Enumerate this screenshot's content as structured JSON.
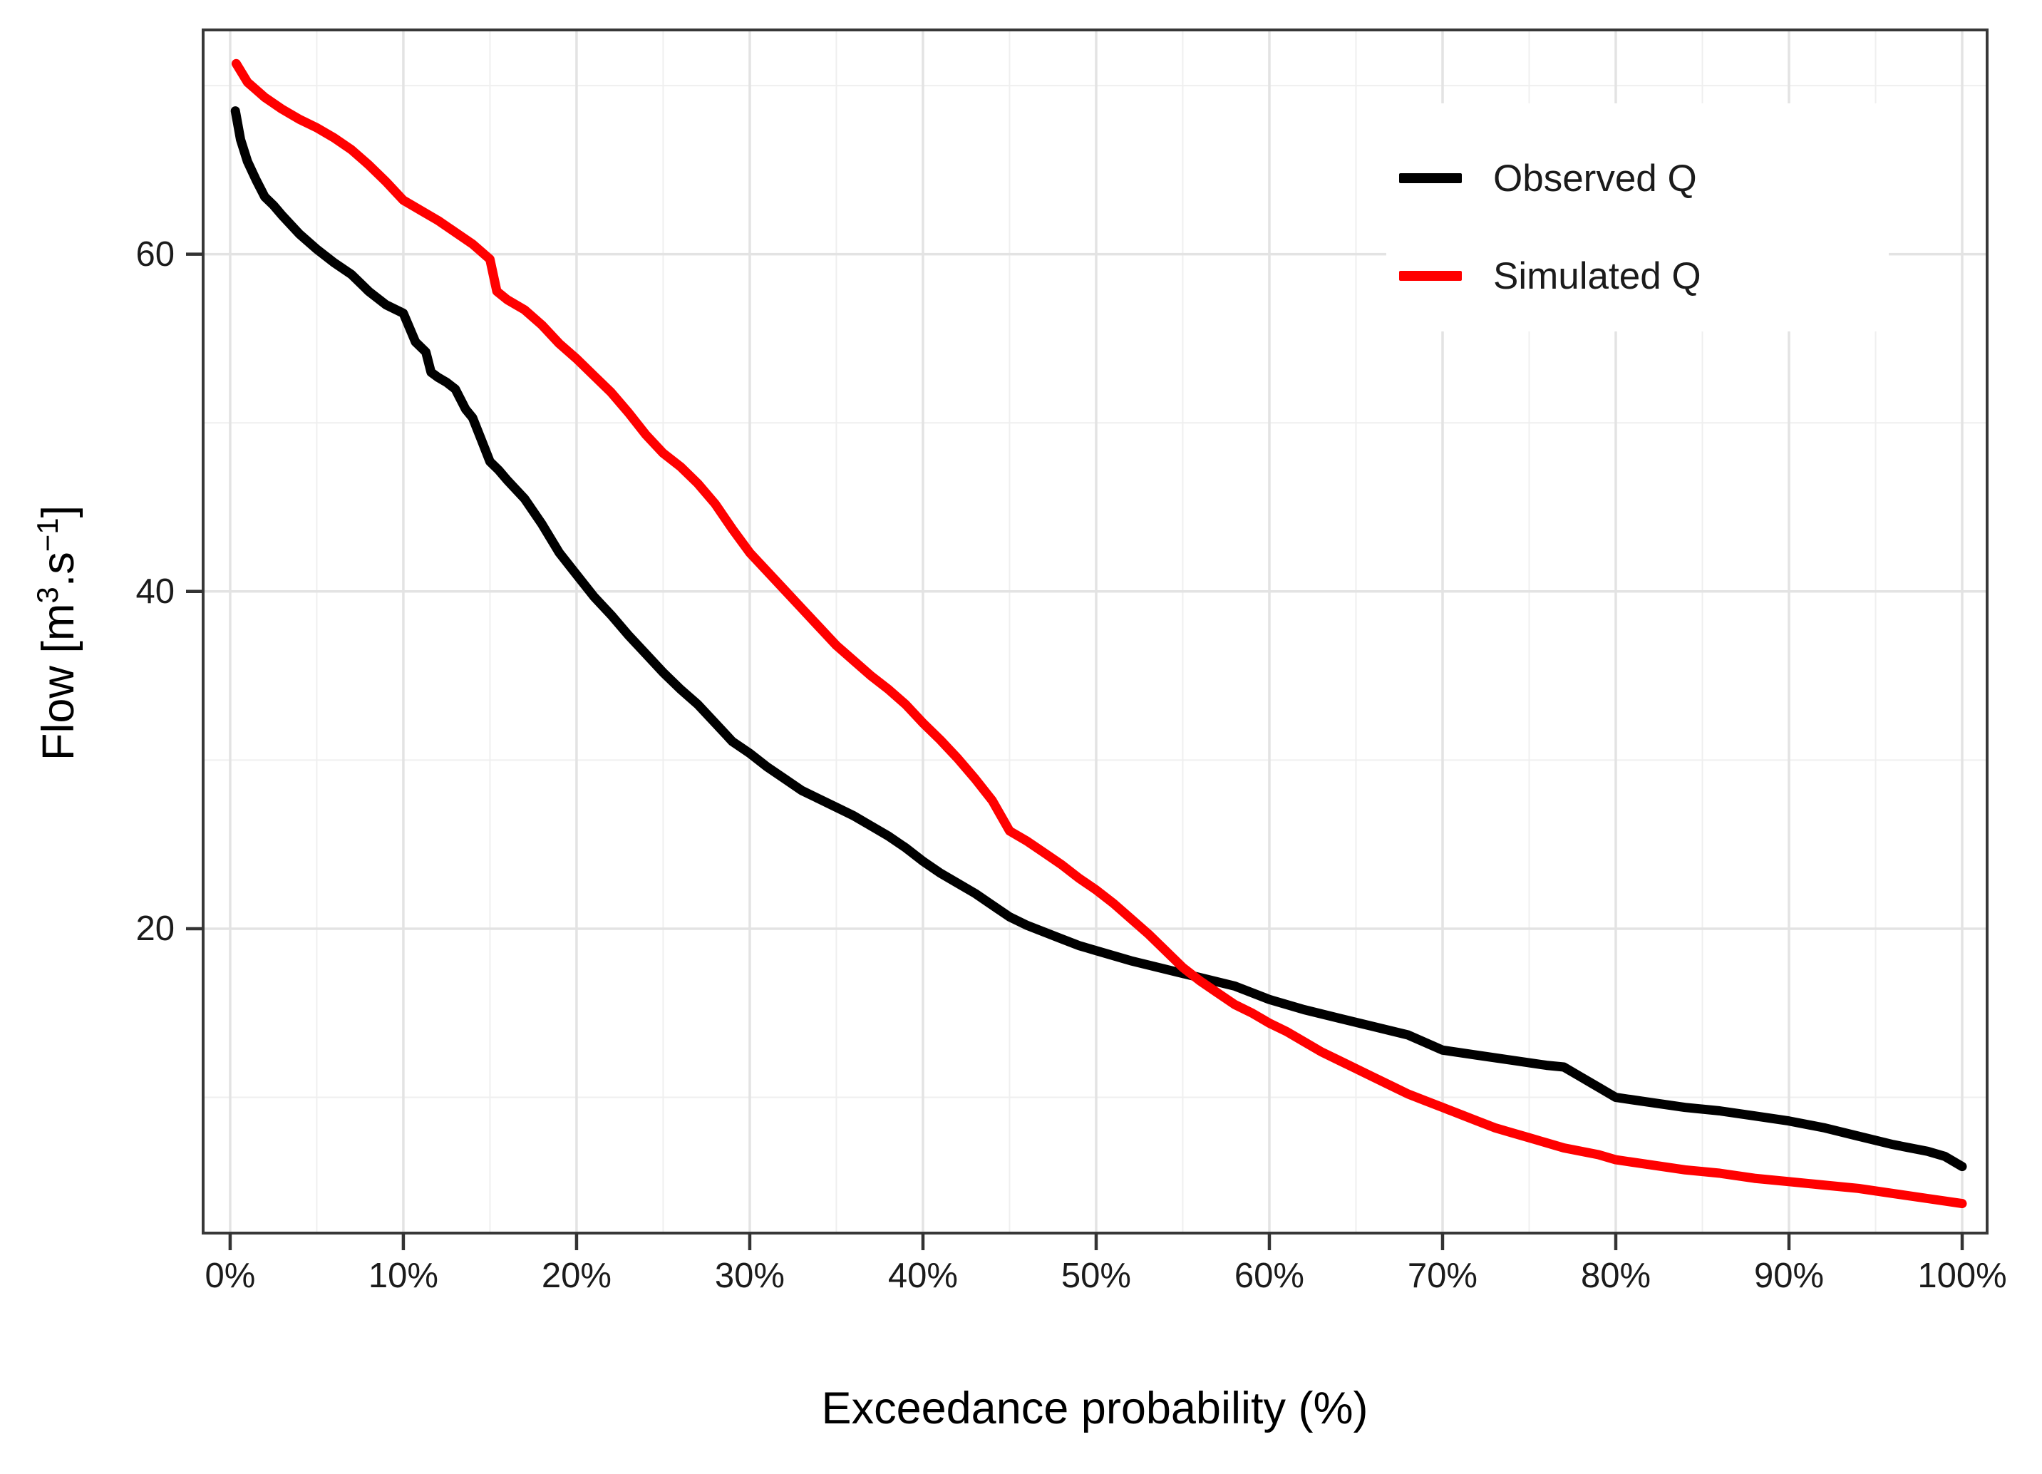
{
  "chart_data": {
    "type": "line",
    "title": "",
    "xlabel": "Exceedance probability (%)",
    "ylabel": "Flow [m3.s-1]",
    "ylabel_parts": {
      "pre": "Flow [m",
      "sup1": "3",
      "mid": ".s",
      "sup2": "−1",
      "post": "]"
    },
    "grid": "on",
    "legend_position": "top-right-inside",
    "axes": {
      "xlim": [
        -1.56,
        101.44
      ],
      "ylim": [
        1.95,
        73.3
      ],
      "x_ticks": {
        "labels": [
          "0%",
          "10%",
          "20%",
          "30%",
          "40%",
          "50%",
          "60%",
          "70%",
          "80%",
          "90%",
          "100%"
        ],
        "values": [
          0,
          10,
          20,
          30,
          40,
          50,
          60,
          70,
          80,
          90,
          100
        ]
      },
      "x_minor": [
        5,
        15,
        25,
        35,
        45,
        55,
        65,
        75,
        85,
        95
      ],
      "y_ticks": {
        "labels": [
          "20",
          "40",
          "60"
        ],
        "values": [
          20,
          40,
          60
        ]
      },
      "y_minor": [
        10,
        30,
        50,
        70
      ]
    },
    "colors": {
      "observed": "#000000",
      "simulated": "#FF0000",
      "grid_major": "#e3e3e3",
      "grid_minor": "#efefef",
      "panel_border": "#383838",
      "tick": "#333333",
      "text": "#1b1b1b"
    },
    "legend": {
      "entries": [
        {
          "label": "Observed Q",
          "color": "#000000"
        },
        {
          "label": "Simulated Q",
          "color": "#FF0000"
        }
      ]
    },
    "series": [
      {
        "name": "Observed Q",
        "color": "#000000",
        "x": [
          0.3,
          0.6,
          1,
          1.5,
          2,
          2.5,
          3,
          4,
          5,
          6,
          7,
          8,
          9,
          10,
          10.7,
          11.3,
          11.6,
          12,
          12.5,
          13,
          13.6,
          14,
          14.5,
          15,
          15.5,
          16,
          17,
          18,
          19,
          20,
          21,
          22,
          23,
          24,
          25,
          26,
          27,
          28,
          29,
          30,
          31,
          32,
          33,
          34,
          35,
          36,
          37,
          38,
          39,
          40,
          41,
          42,
          43,
          44,
          45,
          46,
          47,
          48,
          49,
          50,
          52,
          54,
          56,
          58,
          60,
          62,
          64,
          66,
          68,
          70,
          72,
          74,
          76,
          77,
          78,
          79,
          80,
          82,
          84,
          86,
          88,
          90,
          92,
          94,
          96,
          98,
          99,
          100
        ],
        "y": [
          68.5,
          66.8,
          65.5,
          64.4,
          63.4,
          62.9,
          62.3,
          61.2,
          60.3,
          59.5,
          58.8,
          57.8,
          57.0,
          56.5,
          54.8,
          54.2,
          53.0,
          52.7,
          52.4,
          52.0,
          50.8,
          50.3,
          49.0,
          47.7,
          47.2,
          46.6,
          45.5,
          44.0,
          42.3,
          41.0,
          39.7,
          38.6,
          37.4,
          36.3,
          35.2,
          34.2,
          33.3,
          32.2,
          31.1,
          30.4,
          29.6,
          28.9,
          28.2,
          27.7,
          27.2,
          26.7,
          26.1,
          25.5,
          24.8,
          24.0,
          23.3,
          22.7,
          22.1,
          21.4,
          20.7,
          20.2,
          19.8,
          19.4,
          19.0,
          18.7,
          18.1,
          17.6,
          17.1,
          16.6,
          15.8,
          15.2,
          14.7,
          14.2,
          13.7,
          12.8,
          12.5,
          12.2,
          11.9,
          11.8,
          11.2,
          10.6,
          10.0,
          9.7,
          9.4,
          9.2,
          8.9,
          8.6,
          8.2,
          7.7,
          7.2,
          6.8,
          6.5,
          5.9
        ]
      },
      {
        "name": "Simulated Q",
        "color": "#FF0000",
        "x": [
          0.35,
          1,
          2,
          3,
          4,
          5,
          6,
          7,
          8,
          9,
          10,
          11,
          12,
          13,
          14,
          15,
          15.4,
          16,
          17,
          18,
          19,
          20,
          21,
          22,
          23,
          24,
          25,
          26,
          27,
          28,
          29,
          30,
          31,
          32,
          33,
          34,
          35,
          36,
          37,
          38,
          39,
          40,
          41,
          42,
          43,
          44,
          45,
          46,
          47,
          48,
          49,
          50,
          51,
          52,
          53,
          54,
          55,
          56,
          57,
          58,
          59,
          60,
          61,
          62,
          63,
          64,
          65,
          66,
          67,
          68,
          69,
          70,
          71,
          72,
          73,
          74,
          75,
          76,
          77,
          78,
          79,
          80,
          82,
          84,
          86,
          88,
          90,
          92,
          94,
          96,
          98,
          100
        ],
        "y": [
          71.3,
          70.2,
          69.3,
          68.6,
          68.0,
          67.5,
          66.9,
          66.2,
          65.3,
          64.3,
          63.2,
          62.6,
          62.0,
          61.3,
          60.6,
          59.7,
          57.8,
          57.3,
          56.7,
          55.8,
          54.7,
          53.8,
          52.8,
          51.8,
          50.6,
          49.3,
          48.2,
          47.4,
          46.4,
          45.2,
          43.7,
          42.3,
          41.2,
          40.1,
          39.0,
          37.9,
          36.8,
          35.9,
          35.0,
          34.2,
          33.3,
          32.2,
          31.2,
          30.1,
          28.9,
          27.6,
          25.8,
          25.2,
          24.5,
          23.8,
          23.0,
          22.3,
          21.5,
          20.6,
          19.7,
          18.7,
          17.7,
          16.9,
          16.2,
          15.5,
          15.0,
          14.4,
          13.9,
          13.3,
          12.7,
          12.2,
          11.7,
          11.2,
          10.7,
          10.2,
          9.8,
          9.4,
          9.0,
          8.6,
          8.2,
          7.9,
          7.6,
          7.3,
          7.0,
          6.8,
          6.6,
          6.3,
          6.0,
          5.7,
          5.5,
          5.2,
          5.0,
          4.8,
          4.6,
          4.3,
          4.0,
          3.7
        ]
      }
    ]
  }
}
